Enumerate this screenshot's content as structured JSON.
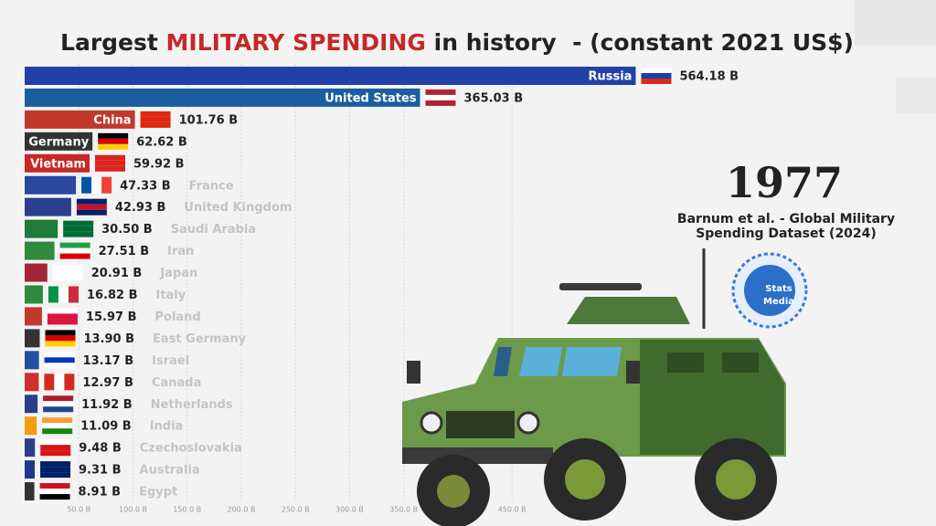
{
  "chart_data": {
    "type": "hbar",
    "title": [
      "Largest ",
      "MILITARY SPENDING",
      " in history  - (constant 2021 US$)"
    ],
    "title_colors": [
      "#222222",
      "#c62828",
      "#222222"
    ],
    "year": "1977",
    "source": "Barnum et al. - Global Military Spending Dataset (2024)",
    "logo": [
      "Stats",
      "Media"
    ],
    "categories": [
      "Russia",
      "United States",
      "China",
      "Germany",
      "Vietnam",
      "France",
      "United Kingdom",
      "Saudi Arabia",
      "Iran",
      "Japan",
      "Italy",
      "Poland",
      "East Germany",
      "Israel",
      "Canada",
      "Netherlands",
      "India",
      "Czechoslovakia",
      "Australia",
      "Egypt"
    ],
    "values": [
      564.18,
      365.03,
      101.76,
      62.62,
      59.92,
      47.33,
      42.93,
      30.5,
      27.51,
      20.91,
      16.82,
      15.97,
      13.9,
      13.17,
      12.97,
      11.92,
      11.09,
      9.48,
      9.31,
      8.91
    ],
    "value_labels": [
      "564.18 B",
      "365.03 B",
      "101.76 B",
      "62.62 B",
      "59.92 B",
      "47.33 B",
      "42.93 B",
      "30.50 B",
      "27.51 B",
      "20.91 B",
      "16.82 B",
      "15.97 B",
      "13.90 B",
      "13.17 B",
      "12.97 B",
      "11.92 B",
      "11.09 B",
      "9.48 B",
      "9.31 B",
      "8.91 B"
    ],
    "colors": [
      "#2340a8",
      "#1b5e9e",
      "#c0392b",
      "#333333",
      "#c62828",
      "#2a48a0",
      "#2b3f8c",
      "#1e7b3a",
      "#2e8b3e",
      "#a3263a",
      "#2e8b3e",
      "#c0392b",
      "#333333",
      "#1f4fa0",
      "#d32f2f",
      "#2a3f8c",
      "#f39c12",
      "#2a3f8c",
      "#1f3a8c",
      "#333333"
    ],
    "xlim": [
      0,
      568
    ],
    "xticks": [
      {
        "value": 50,
        "label": "50.0 B"
      },
      {
        "value": 100,
        "label": "100.0 B"
      },
      {
        "value": 150,
        "label": "150.0 B"
      },
      {
        "value": 200,
        "label": "200.0 B"
      },
      {
        "value": 250,
        "label": "250.0 B"
      },
      {
        "value": 300,
        "label": "300.0 B"
      },
      {
        "value": 350,
        "label": "350.0 B"
      },
      {
        "value": 450,
        "label": "450.0 B"
      }
    ],
    "grid": true
  }
}
